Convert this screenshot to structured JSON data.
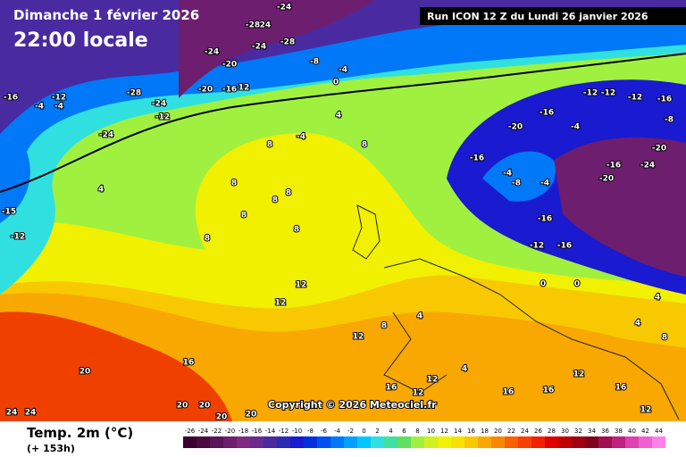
{
  "header": {
    "date": "Dimanche 1 février 2026",
    "time": "22:00 locale",
    "run": "Run ICON 12 Z du Lundi 26 janvier 2026"
  },
  "copyright": "Copyright © 2026 Meteociel.fr",
  "legend": {
    "title": "Temp. 2m (°C)",
    "lead": "(+ 153h)",
    "ticks": [
      -26,
      -24,
      -22,
      -20,
      -18,
      -16,
      -14,
      -12,
      -10,
      -8,
      -6,
      -4,
      -2,
      0,
      2,
      4,
      6,
      8,
      10,
      12,
      14,
      16,
      18,
      20,
      22,
      24,
      26,
      28,
      30,
      32,
      34,
      36,
      38,
      40,
      42,
      44
    ],
    "colors": [
      "#3a0030",
      "#4a0a40",
      "#5c1458",
      "#6e1e6e",
      "#802a80",
      "#6a2a8c",
      "#4a2aa0",
      "#2a2ab4",
      "#1a1ad0",
      "#0030e0",
      "#0050f0",
      "#0078f8",
      "#00a0ff",
      "#00c8ff",
      "#30e0e0",
      "#40e0a0",
      "#60e060",
      "#a0f040",
      "#d0f020",
      "#f0f000",
      "#f8e000",
      "#f8c800",
      "#f8a800",
      "#f88800",
      "#f86000",
      "#f84000",
      "#f02000",
      "#e00000",
      "#c00000",
      "#a00010",
      "#800020",
      "#a01050",
      "#c02080",
      "#e040b0",
      "#f060d0",
      "#ff80e8"
    ]
  },
  "map": {
    "labels": [
      -24,
      -24,
      -28,
      -24,
      -28,
      -8,
      -4,
      0,
      -24,
      -20,
      -20,
      -16,
      12,
      -28,
      -24,
      -12,
      -16,
      -12,
      -4,
      -4,
      -24,
      4,
      -4,
      8,
      8,
      4,
      8,
      8,
      8,
      8,
      8,
      8,
      -12,
      -15,
      12,
      12,
      16,
      20,
      20,
      20,
      20,
      20,
      24,
      24,
      -12,
      -12,
      -12,
      -16,
      -8,
      -20,
      -16,
      -4,
      -16,
      -4,
      -8,
      -4,
      -16,
      -24,
      -20,
      -20,
      -16,
      -12,
      -16,
      0,
      0,
      4,
      4,
      8,
      12,
      16,
      12,
      16,
      16,
      12,
      16,
      12,
      4,
      8,
      12,
      4
    ]
  }
}
